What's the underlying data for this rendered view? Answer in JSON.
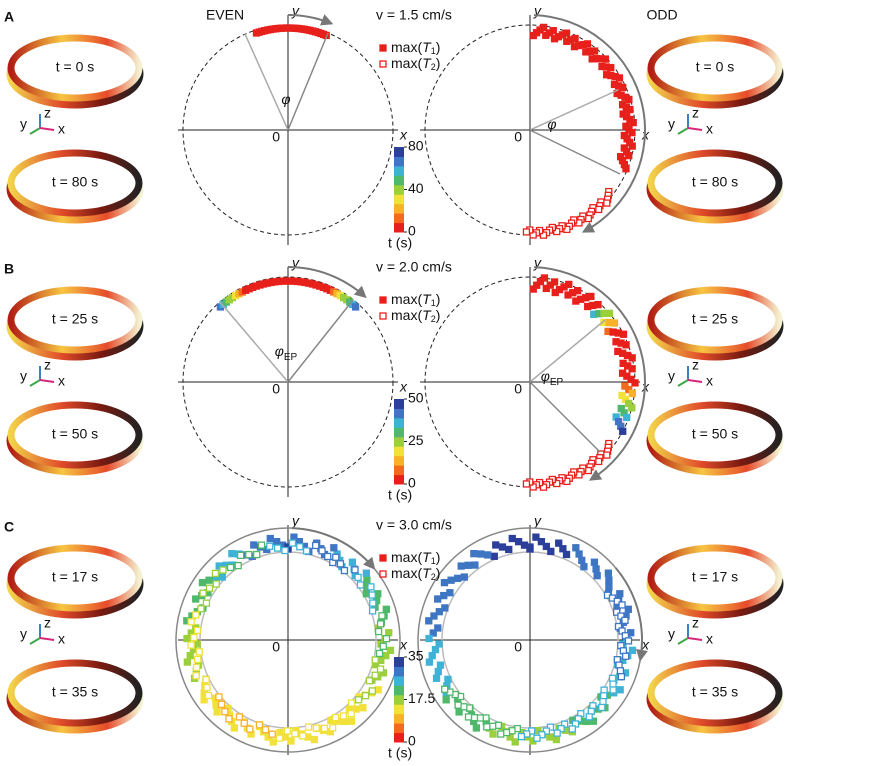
{
  "headers": {
    "even": "EVEN",
    "odd": "ODD"
  },
  "panels": [
    {
      "label": "A",
      "velocity": "v = 1.5 cm/s",
      "left_rings": [
        "t = 0 s",
        "t = 80 s"
      ],
      "right_rings": [
        "t = 0 s",
        "t = 80 s"
      ],
      "triad": {
        "x": "x",
        "y": "y",
        "z": "z"
      },
      "legend": [
        {
          "name": "max(",
          "var": "T",
          "sub": "1",
          "close": ")"
        },
        {
          "name": "max(",
          "var": "T",
          "sub": "2",
          "close": ")"
        }
      ],
      "angle": {
        "symbol": "φ"
      },
      "plots": [
        {
          "x": "x",
          "y": "y",
          "origin": "0"
        },
        {
          "x": "x",
          "y": "y",
          "origin": "0"
        }
      ],
      "colorbar": {
        "ticks": [
          0,
          40,
          80
        ],
        "label": "t (s)"
      }
    },
    {
      "label": "B",
      "velocity": "v = 2.0 cm/s",
      "left_rings": [
        "t = 25 s",
        "t = 50 s"
      ],
      "right_rings": [
        "t = 25 s",
        "t = 50 s"
      ],
      "triad": {
        "x": "x",
        "y": "y",
        "z": "z"
      },
      "legend": [
        {
          "name": "max(",
          "var": "T",
          "sub": "1",
          "close": ")"
        },
        {
          "name": "max(",
          "var": "T",
          "sub": "2",
          "close": ")"
        }
      ],
      "angle": {
        "symbol": "φ",
        "sub": "EP"
      },
      "plots": [
        {
          "x": "x",
          "y": "y",
          "origin": "0"
        },
        {
          "x": "x",
          "y": "y",
          "origin": "0"
        }
      ],
      "colorbar": {
        "ticks": [
          0,
          25,
          50
        ],
        "label": "t (s)"
      }
    },
    {
      "label": "C",
      "velocity": "v = 3.0 cm/s",
      "left_rings": [
        "t = 17 s",
        "t = 35 s"
      ],
      "right_rings": [
        "t = 17 s",
        "t = 35 s"
      ],
      "triad": {
        "x": "x",
        "y": "y",
        "z": "z"
      },
      "legend": [
        {
          "name": "max(",
          "var": "T",
          "sub": "1",
          "close": ")"
        },
        {
          "name": "max(",
          "var": "T",
          "sub": "2",
          "close": ")"
        }
      ],
      "plots": [
        {
          "x": "x",
          "y": "y",
          "origin": "0"
        },
        {
          "x": "x",
          "y": "y",
          "origin": "0"
        }
      ],
      "colorbar": {
        "ticks": [
          0,
          17.5,
          35
        ],
        "label": "t (s)"
      }
    }
  ]
}
